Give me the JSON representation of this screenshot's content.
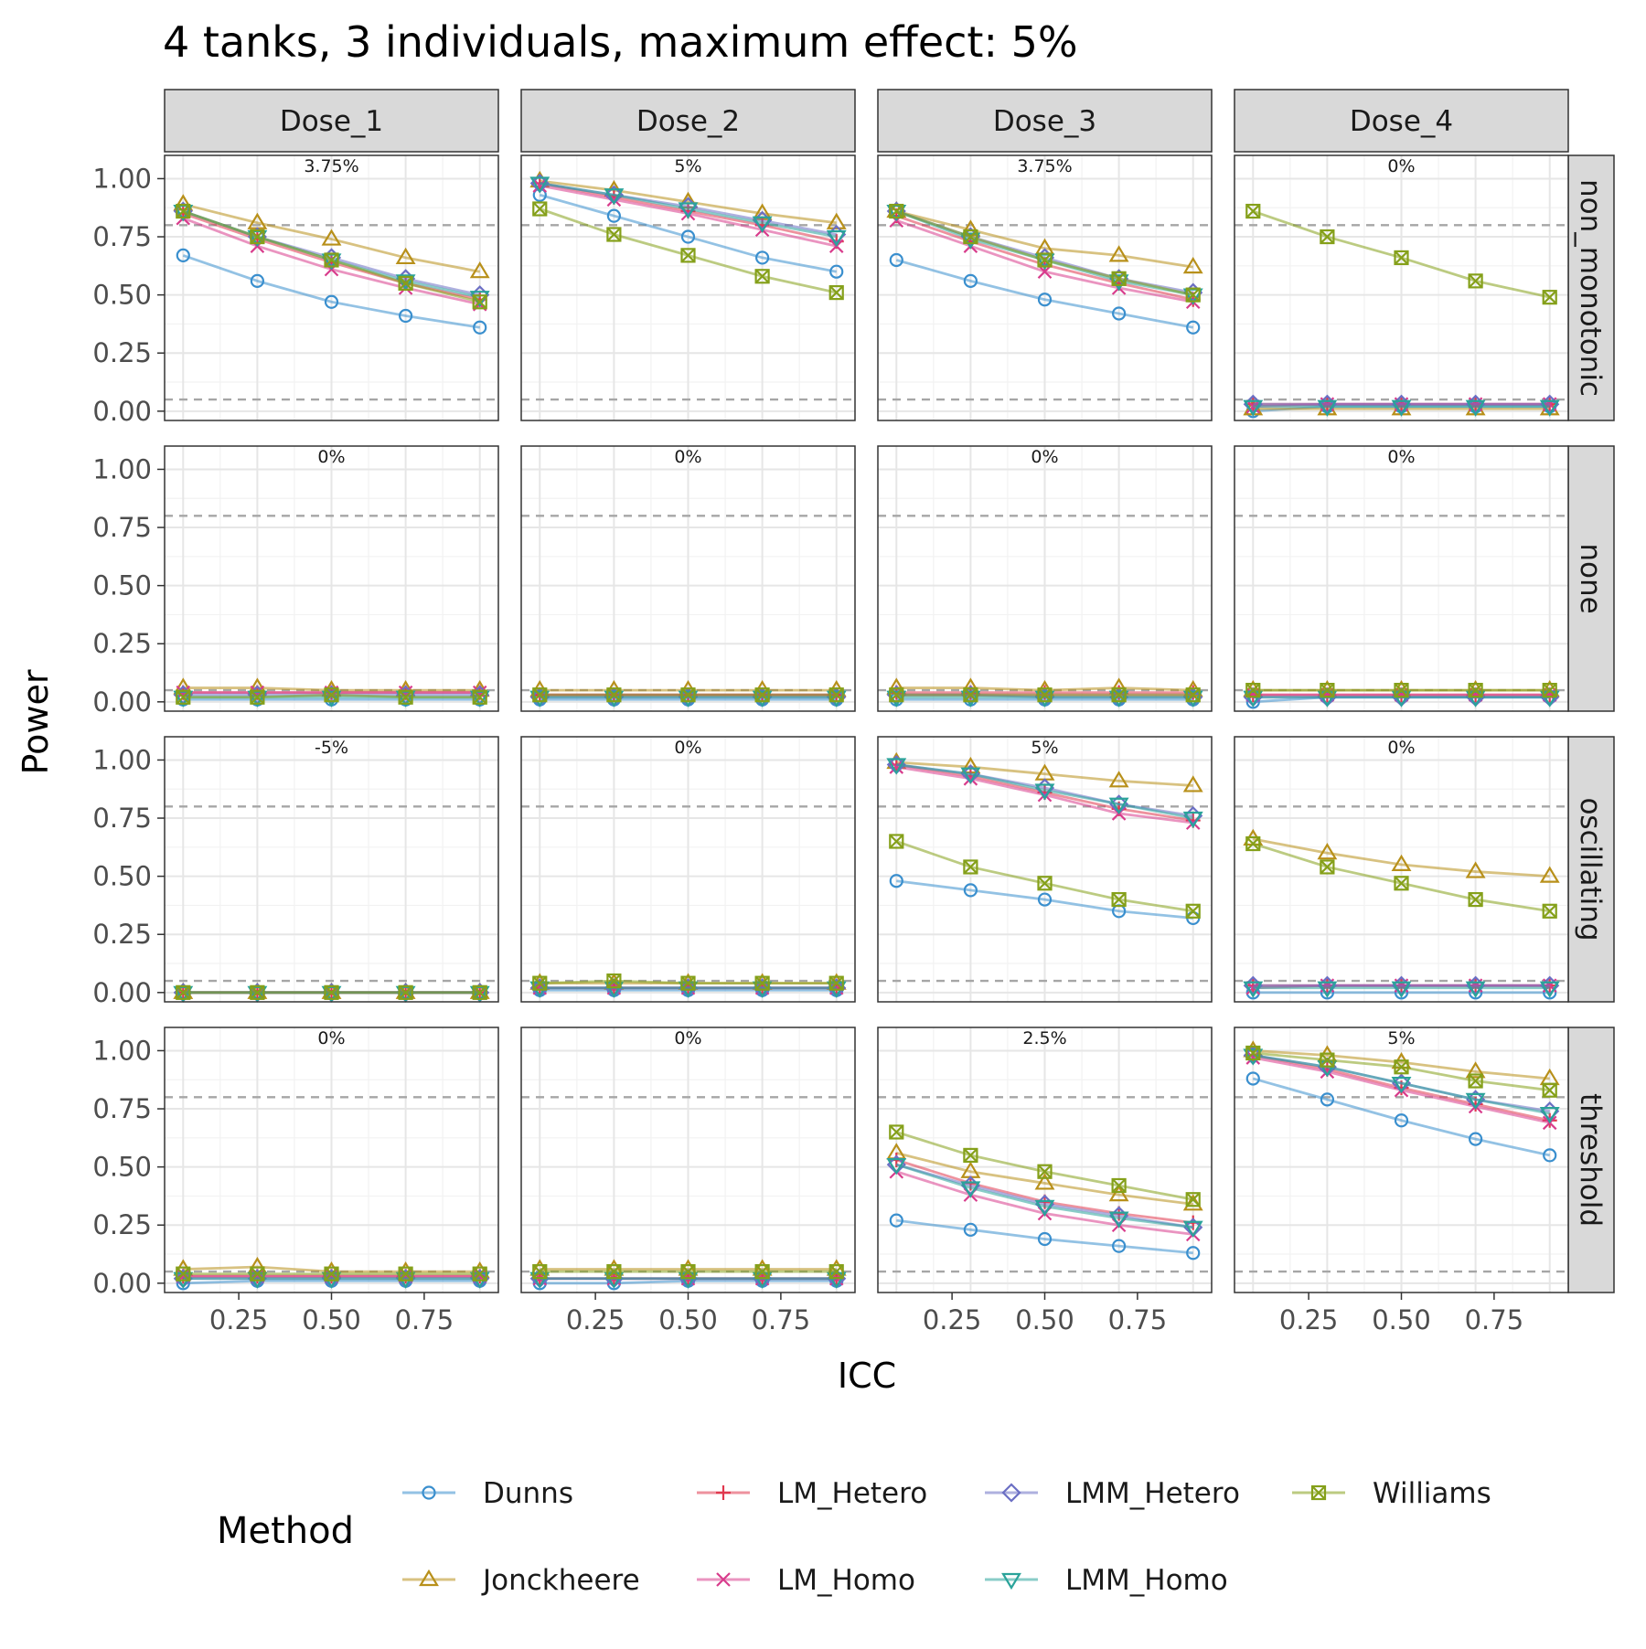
{
  "chart_data": {
    "type": "line",
    "title": "4 tanks, 3 individuals, maximum effect: 5%",
    "xlabel": "ICC",
    "ylabel": "Power",
    "x": [
      0.1,
      0.3,
      0.5,
      0.7,
      0.9
    ],
    "x_ticks": [
      "0.25",
      "0.50",
      "0.75"
    ],
    "y_ticks": [
      "0.00",
      "0.25",
      "0.50",
      "0.75",
      "1.00"
    ],
    "xlim": [
      0.05,
      0.95
    ],
    "ylim": [
      -0.04,
      1.1
    ],
    "reference_lines": [
      0.05,
      0.8
    ],
    "grid": true,
    "legend": {
      "title": "Method",
      "placement": "bottom",
      "entries": [
        "Dunns",
        "LM_Hetero",
        "LMM_Hetero",
        "Williams",
        "Jonckheere",
        "LM_Homo",
        "LMM_Homo"
      ]
    },
    "methods": [
      {
        "name": "Dunns",
        "color": "#3a8fce",
        "marker": "circle"
      },
      {
        "name": "Jonckheere",
        "color": "#b8901a",
        "marker": "triangle-up"
      },
      {
        "name": "LM_Hetero",
        "color": "#e0384e",
        "marker": "plus"
      },
      {
        "name": "LM_Homo",
        "color": "#d83c8c",
        "marker": "cross"
      },
      {
        "name": "LMM_Hetero",
        "color": "#6b6fc4",
        "marker": "diamond"
      },
      {
        "name": "LMM_Homo",
        "color": "#2aa39a",
        "marker": "triangle-down"
      },
      {
        "name": "Williams",
        "color": "#85a01a",
        "marker": "square-x"
      }
    ],
    "columns": [
      "Dose_1",
      "Dose_2",
      "Dose_3",
      "Dose_4"
    ],
    "rows": [
      "non_monotonic",
      "none",
      "oscillating",
      "threshold"
    ],
    "panels": [
      {
        "row": "non_monotonic",
        "col": "Dose_1",
        "label": "3.75%",
        "series": {
          "Dunns": [
            0.67,
            0.56,
            0.47,
            0.41,
            0.36
          ],
          "Jonckheere": [
            0.89,
            0.81,
            0.74,
            0.66,
            0.6
          ],
          "LM_Hetero": [
            0.85,
            0.74,
            0.64,
            0.55,
            0.48
          ],
          "LM_Homo": [
            0.83,
            0.71,
            0.61,
            0.53,
            0.46
          ],
          "LMM_Hetero": [
            0.86,
            0.75,
            0.66,
            0.57,
            0.5
          ],
          "LMM_Homo": [
            0.86,
            0.75,
            0.65,
            0.56,
            0.49
          ],
          "Williams": [
            0.86,
            0.75,
            0.65,
            0.55,
            0.47
          ]
        }
      },
      {
        "row": "non_monotonic",
        "col": "Dose_2",
        "label": "5%",
        "series": {
          "Dunns": [
            0.93,
            0.84,
            0.75,
            0.66,
            0.6
          ],
          "Jonckheere": [
            0.99,
            0.95,
            0.9,
            0.85,
            0.81
          ],
          "LM_Hetero": [
            0.98,
            0.92,
            0.86,
            0.8,
            0.73
          ],
          "LM_Homo": [
            0.97,
            0.91,
            0.85,
            0.78,
            0.71
          ],
          "LMM_Hetero": [
            0.98,
            0.93,
            0.88,
            0.82,
            0.76
          ],
          "LMM_Homo": [
            0.98,
            0.93,
            0.87,
            0.81,
            0.75
          ],
          "Williams": [
            0.87,
            0.76,
            0.67,
            0.58,
            0.51
          ]
        }
      },
      {
        "row": "non_monotonic",
        "col": "Dose_3",
        "label": "3.75%",
        "series": {
          "Dunns": [
            0.65,
            0.56,
            0.48,
            0.42,
            0.36
          ],
          "Jonckheere": [
            0.86,
            0.78,
            0.7,
            0.67,
            0.62
          ],
          "LM_Hetero": [
            0.84,
            0.73,
            0.63,
            0.55,
            0.48
          ],
          "LM_Homo": [
            0.82,
            0.71,
            0.6,
            0.53,
            0.47
          ],
          "LMM_Hetero": [
            0.86,
            0.75,
            0.66,
            0.57,
            0.51
          ],
          "LMM_Homo": [
            0.86,
            0.74,
            0.65,
            0.56,
            0.5
          ],
          "Williams": [
            0.86,
            0.75,
            0.65,
            0.57,
            0.5
          ]
        }
      },
      {
        "row": "non_monotonic",
        "col": "Dose_4",
        "label": "0%",
        "series": {
          "Dunns": [
            0.0,
            0.02,
            0.02,
            0.02,
            0.02
          ],
          "Jonckheere": [
            0.01,
            0.01,
            0.01,
            0.01,
            0.01
          ],
          "LM_Hetero": [
            0.03,
            0.03,
            0.03,
            0.03,
            0.03
          ],
          "LM_Homo": [
            0.02,
            0.03,
            0.03,
            0.03,
            0.03
          ],
          "LMM_Hetero": [
            0.03,
            0.03,
            0.03,
            0.03,
            0.03
          ],
          "LMM_Homo": [
            0.02,
            0.02,
            0.02,
            0.02,
            0.02
          ],
          "Williams": [
            0.86,
            0.75,
            0.66,
            0.56,
            0.49
          ]
        }
      },
      {
        "row": "none",
        "col": "Dose_1",
        "label": "0%",
        "series": {
          "Dunns": [
            0.01,
            0.01,
            0.01,
            0.01,
            0.01
          ],
          "Jonckheere": [
            0.06,
            0.06,
            0.05,
            0.05,
            0.05
          ],
          "LM_Hetero": [
            0.04,
            0.04,
            0.04,
            0.04,
            0.04
          ],
          "LM_Homo": [
            0.04,
            0.04,
            0.04,
            0.04,
            0.04
          ],
          "LMM_Hetero": [
            0.03,
            0.03,
            0.03,
            0.03,
            0.03
          ],
          "LMM_Homo": [
            0.02,
            0.02,
            0.02,
            0.02,
            0.02
          ],
          "Williams": [
            0.02,
            0.02,
            0.03,
            0.02,
            0.02
          ]
        }
      },
      {
        "row": "none",
        "col": "Dose_2",
        "label": "0%",
        "series": {
          "Dunns": [
            0.01,
            0.01,
            0.01,
            0.01,
            0.01
          ],
          "Jonckheere": [
            0.05,
            0.05,
            0.05,
            0.05,
            0.05
          ],
          "LM_Hetero": [
            0.03,
            0.03,
            0.03,
            0.03,
            0.03
          ],
          "LM_Homo": [
            0.03,
            0.03,
            0.03,
            0.03,
            0.03
          ],
          "LMM_Hetero": [
            0.02,
            0.02,
            0.02,
            0.02,
            0.02
          ],
          "LMM_Homo": [
            0.02,
            0.02,
            0.02,
            0.02,
            0.02
          ],
          "Williams": [
            0.03,
            0.03,
            0.03,
            0.03,
            0.03
          ]
        }
      },
      {
        "row": "none",
        "col": "Dose_3",
        "label": "0%",
        "series": {
          "Dunns": [
            0.01,
            0.01,
            0.01,
            0.01,
            0.01
          ],
          "Jonckheere": [
            0.06,
            0.06,
            0.05,
            0.06,
            0.05
          ],
          "LM_Hetero": [
            0.04,
            0.04,
            0.04,
            0.04,
            0.04
          ],
          "LM_Homo": [
            0.03,
            0.03,
            0.03,
            0.03,
            0.03
          ],
          "LMM_Hetero": [
            0.03,
            0.03,
            0.02,
            0.02,
            0.02
          ],
          "LMM_Homo": [
            0.02,
            0.02,
            0.02,
            0.02,
            0.02
          ],
          "Williams": [
            0.03,
            0.03,
            0.03,
            0.03,
            0.03
          ]
        }
      },
      {
        "row": "none",
        "col": "Dose_4",
        "label": "0%",
        "series": {
          "Dunns": [
            0.0,
            0.02,
            0.02,
            0.02,
            0.02
          ],
          "Jonckheere": [
            0.05,
            0.05,
            0.05,
            0.05,
            0.05
          ],
          "LM_Hetero": [
            0.03,
            0.03,
            0.03,
            0.03,
            0.03
          ],
          "LM_Homo": [
            0.03,
            0.03,
            0.03,
            0.03,
            0.03
          ],
          "LMM_Hetero": [
            0.02,
            0.02,
            0.02,
            0.02,
            0.02
          ],
          "LMM_Homo": [
            0.02,
            0.02,
            0.02,
            0.02,
            0.02
          ],
          "Williams": [
            0.05,
            0.05,
            0.05,
            0.05,
            0.05
          ]
        }
      },
      {
        "row": "oscillating",
        "col": "Dose_1",
        "label": "-5%",
        "series": {
          "Dunns": [
            0.0,
            0.0,
            0.0,
            0.0,
            0.0
          ],
          "Jonckheere": [
            0.0,
            0.0,
            0.0,
            0.0,
            0.0
          ],
          "LM_Hetero": [
            0.0,
            0.0,
            0.0,
            0.0,
            0.0
          ],
          "LM_Homo": [
            0.0,
            0.0,
            0.0,
            0.0,
            0.0
          ],
          "LMM_Hetero": [
            0.0,
            0.0,
            0.0,
            0.0,
            0.0
          ],
          "LMM_Homo": [
            0.0,
            0.0,
            0.0,
            0.0,
            0.0
          ],
          "Williams": [
            0.0,
            0.0,
            0.0,
            0.0,
            0.0
          ]
        }
      },
      {
        "row": "oscillating",
        "col": "Dose_2",
        "label": "0%",
        "series": {
          "Dunns": [
            0.01,
            0.01,
            0.01,
            0.01,
            0.01
          ],
          "Jonckheere": [
            0.04,
            0.04,
            0.04,
            0.04,
            0.04
          ],
          "LM_Hetero": [
            0.02,
            0.02,
            0.02,
            0.02,
            0.02
          ],
          "LM_Homo": [
            0.02,
            0.02,
            0.02,
            0.02,
            0.02
          ],
          "LMM_Hetero": [
            0.02,
            0.02,
            0.02,
            0.02,
            0.02
          ],
          "LMM_Homo": [
            0.02,
            0.02,
            0.02,
            0.02,
            0.02
          ],
          "Williams": [
            0.04,
            0.05,
            0.04,
            0.04,
            0.04
          ]
        }
      },
      {
        "row": "oscillating",
        "col": "Dose_3",
        "label": "5%",
        "series": {
          "Dunns": [
            0.48,
            0.44,
            0.4,
            0.35,
            0.32
          ],
          "Jonckheere": [
            0.99,
            0.97,
            0.94,
            0.91,
            0.89
          ],
          "LM_Hetero": [
            0.98,
            0.93,
            0.86,
            0.79,
            0.74
          ],
          "LM_Homo": [
            0.97,
            0.92,
            0.85,
            0.77,
            0.73
          ],
          "LMM_Hetero": [
            0.98,
            0.94,
            0.88,
            0.81,
            0.76
          ],
          "LMM_Homo": [
            0.98,
            0.94,
            0.87,
            0.81,
            0.75
          ],
          "Williams": [
            0.65,
            0.54,
            0.47,
            0.4,
            0.35
          ]
        }
      },
      {
        "row": "oscillating",
        "col": "Dose_4",
        "label": "0%",
        "series": {
          "Dunns": [
            0.0,
            0.0,
            0.0,
            0.0,
            0.0
          ],
          "Jonckheere": [
            0.66,
            0.6,
            0.55,
            0.52,
            0.5
          ],
          "LM_Hetero": [
            0.03,
            0.03,
            0.03,
            0.03,
            0.03
          ],
          "LM_Homo": [
            0.02,
            0.03,
            0.03,
            0.03,
            0.03
          ],
          "LMM_Hetero": [
            0.03,
            0.03,
            0.03,
            0.03,
            0.03
          ],
          "LMM_Homo": [
            0.02,
            0.02,
            0.02,
            0.02,
            0.02
          ],
          "Williams": [
            0.64,
            0.54,
            0.47,
            0.4,
            0.35
          ]
        }
      },
      {
        "row": "threshold",
        "col": "Dose_1",
        "label": "0%",
        "series": {
          "Dunns": [
            0.0,
            0.01,
            0.01,
            0.01,
            0.01
          ],
          "Jonckheere": [
            0.06,
            0.07,
            0.05,
            0.05,
            0.05
          ],
          "LM_Hetero": [
            0.03,
            0.03,
            0.03,
            0.03,
            0.03
          ],
          "LM_Homo": [
            0.03,
            0.03,
            0.03,
            0.03,
            0.03
          ],
          "LMM_Hetero": [
            0.02,
            0.02,
            0.02,
            0.02,
            0.02
          ],
          "LMM_Homo": [
            0.02,
            0.02,
            0.02,
            0.02,
            0.02
          ],
          "Williams": [
            0.04,
            0.04,
            0.04,
            0.04,
            0.04
          ]
        }
      },
      {
        "row": "threshold",
        "col": "Dose_2",
        "label": "0%",
        "series": {
          "Dunns": [
            0.0,
            0.0,
            0.01,
            0.01,
            0.01
          ],
          "Jonckheere": [
            0.06,
            0.06,
            0.06,
            0.06,
            0.06
          ],
          "LM_Hetero": [
            0.02,
            0.02,
            0.02,
            0.02,
            0.02
          ],
          "LM_Homo": [
            0.02,
            0.02,
            0.02,
            0.02,
            0.02
          ],
          "LMM_Hetero": [
            0.02,
            0.02,
            0.02,
            0.02,
            0.02
          ],
          "LMM_Homo": [
            0.02,
            0.02,
            0.02,
            0.02,
            0.02
          ],
          "Williams": [
            0.05,
            0.05,
            0.05,
            0.05,
            0.05
          ]
        }
      },
      {
        "row": "threshold",
        "col": "Dose_3",
        "label": "2.5%",
        "series": {
          "Dunns": [
            0.27,
            0.23,
            0.19,
            0.16,
            0.13
          ],
          "Jonckheere": [
            0.56,
            0.48,
            0.43,
            0.38,
            0.34
          ],
          "LM_Hetero": [
            0.53,
            0.43,
            0.35,
            0.3,
            0.26
          ],
          "LM_Homo": [
            0.48,
            0.38,
            0.3,
            0.25,
            0.21
          ],
          "LMM_Hetero": [
            0.51,
            0.42,
            0.34,
            0.29,
            0.24
          ],
          "LMM_Homo": [
            0.51,
            0.41,
            0.33,
            0.28,
            0.24
          ],
          "Williams": [
            0.65,
            0.55,
            0.48,
            0.42,
            0.36
          ]
        }
      },
      {
        "row": "threshold",
        "col": "Dose_4",
        "label": "5%",
        "series": {
          "Dunns": [
            0.88,
            0.79,
            0.7,
            0.62,
            0.55
          ],
          "Jonckheere": [
            1.0,
            0.98,
            0.95,
            0.91,
            0.88
          ],
          "LM_Hetero": [
            0.98,
            0.92,
            0.84,
            0.77,
            0.7
          ],
          "LM_Homo": [
            0.97,
            0.91,
            0.83,
            0.76,
            0.69
          ],
          "LMM_Hetero": [
            0.98,
            0.93,
            0.86,
            0.79,
            0.74
          ],
          "LMM_Homo": [
            0.98,
            0.93,
            0.86,
            0.79,
            0.73
          ],
          "Williams": [
            0.99,
            0.96,
            0.93,
            0.87,
            0.83
          ]
        }
      }
    ]
  }
}
